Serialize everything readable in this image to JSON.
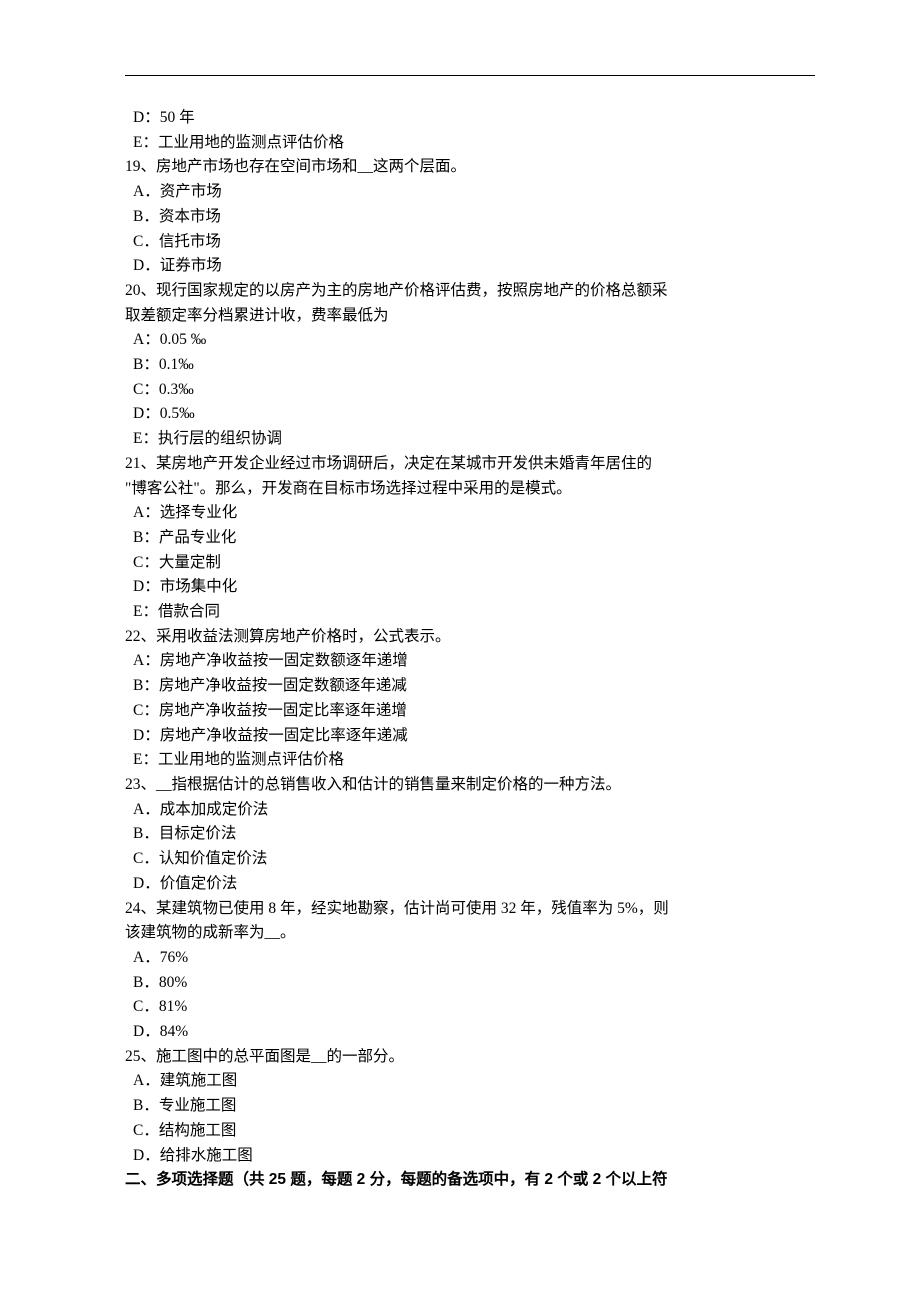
{
  "q18_continued": {
    "optionD": "D：50 年",
    "optionE": "E：工业用地的监测点评估价格"
  },
  "q19": {
    "text": "19、房地产市场也存在空间市场和__这两个层面。",
    "optionA": "A．资产市场",
    "optionB": "B．资本市场",
    "optionC": "C．信托市场",
    "optionD": "D．证券市场"
  },
  "q20": {
    "text1": "20、现行国家规定的以房产为主的房地产价格评估费，按照房地产的价格总额采",
    "text2": "取差额定率分档累进计收，费率最低为",
    "optionA": "A：0.05 ‰",
    "optionB": "B：0.1‰",
    "optionC": "C：0.3‰",
    "optionD": "D：0.5‰",
    "optionE": "E：执行层的组织协调"
  },
  "q21": {
    "text1": "21、某房地产开发企业经过市场调研后，决定在某城市开发供未婚青年居住的",
    "text2": "\"博客公社\"。那么，开发商在目标市场选择过程中采用的是模式。",
    "optionA": "A：选择专业化",
    "optionB": "B：产品专业化",
    "optionC": "C：大量定制",
    "optionD": "D：市场集中化",
    "optionE": "E：借款合同"
  },
  "q22": {
    "text": "22、采用收益法测算房地产价格时，公式表示。",
    "optionA": "A：房地产净收益按一固定数额逐年递增",
    "optionB": "B：房地产净收益按一固定数额逐年递减",
    "optionC": "C：房地产净收益按一固定比率逐年递增",
    "optionD": "D：房地产净收益按一固定比率逐年递减",
    "optionE": "E：工业用地的监测点评估价格"
  },
  "q23": {
    "text": "23、__指根据估计的总销售收入和估计的销售量来制定价格的一种方法。",
    "optionA": "A．成本加成定价法",
    "optionB": "B．目标定价法",
    "optionC": "C．认知价值定价法",
    "optionD": "D．价值定价法"
  },
  "q24": {
    "text1": "24、某建筑物已使用 8 年，经实地勘察，估计尚可使用 32 年，残值率为 5%，则",
    "text2": "该建筑物的成新率为__。",
    "optionA": "A．76%",
    "optionB": "B．80%",
    "optionC": "C．81%",
    "optionD": "D．84%"
  },
  "q25": {
    "text": "25、施工图中的总平面图是__的一部分。",
    "optionA": "A．建筑施工图",
    "optionB": "B．专业施工图",
    "optionC": "C．结构施工图",
    "optionD": "D．给排水施工图"
  },
  "section2": {
    "header": "二、多项选择题（共 25 题，每题 2 分，每题的备选项中，有 2 个或 2 个以上符"
  }
}
